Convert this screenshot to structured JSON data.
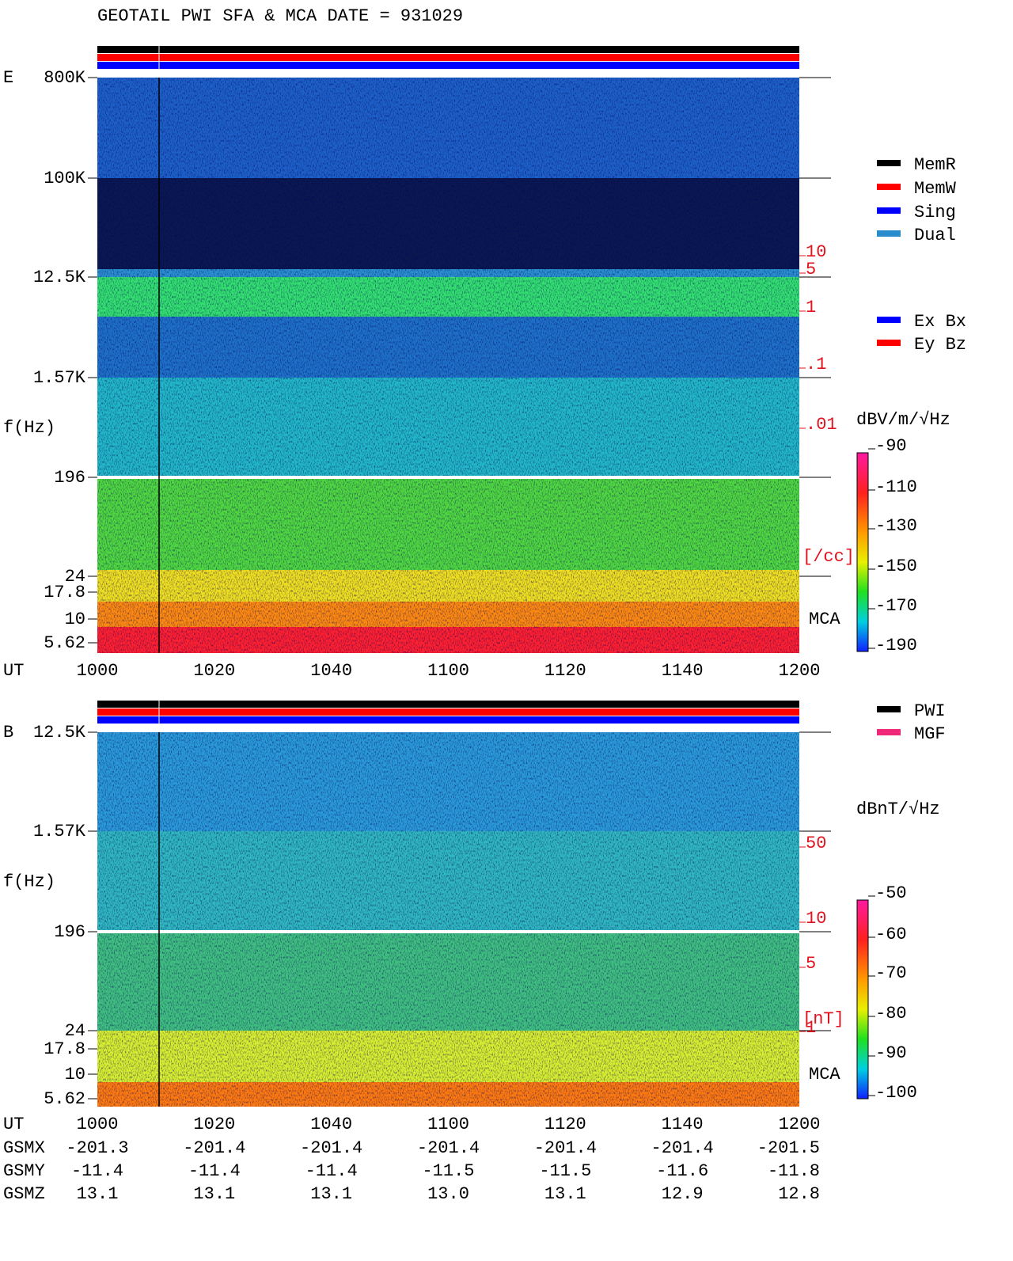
{
  "title": "GEOTAIL  PWI SFA & MCA   DATE = 931029",
  "panels": [
    {
      "name": "E",
      "y_label": "f(Hz)",
      "freq_ticks": [
        "800K",
        "100K",
        "12.5K",
        "1.57K",
        196,
        24,
        17.8,
        10,
        5.62
      ],
      "time_label": "UT",
      "time_ticks": [
        1000,
        1020,
        1040,
        1100,
        1120,
        1140,
        1200
      ],
      "legend": [
        "MemR",
        "MemW",
        "Sing",
        "Dual"
      ],
      "legend2": [
        "Ex Bx",
        "Ey Bz"
      ],
      "unit": "dBV/m/√Hz",
      "colorbar_ticks": [
        -90,
        -110,
        -130,
        -150,
        -170,
        -190
      ],
      "right_ticks": [
        10,
        5,
        1,
        ".1",
        ".01"
      ],
      "right_unit": "[/cc]",
      "mca_label": "MCA"
    },
    {
      "name": "B",
      "y_label": "f(Hz)",
      "freq_ticks": [
        "12.5K",
        "1.57K",
        196,
        24,
        17.8,
        10,
        5.62
      ],
      "time_label": "UT",
      "time_ticks": [
        1000,
        1020,
        1040,
        1100,
        1120,
        1140,
        1200
      ],
      "legend": [
        "PWI",
        "MGF"
      ],
      "unit": "dBnT/√Hz",
      "colorbar_ticks": [
        -50,
        -60,
        -70,
        -80,
        -90,
        -100
      ],
      "right_ticks": [
        50,
        10,
        5,
        1
      ],
      "right_unit": "[nT]",
      "mca_label": "MCA"
    }
  ],
  "orbit": [
    {
      "label": "GSMX",
      "values": [
        -201.3,
        -201.4,
        -201.4,
        -201.4,
        -201.4,
        -201.4,
        -201.5
      ]
    },
    {
      "label": "GSMY",
      "values": [
        -11.4,
        -11.4,
        -11.4,
        -11.5,
        -11.5,
        -11.6,
        -11.8
      ]
    },
    {
      "label": "GSMZ",
      "values": [
        13.1,
        13.1,
        13.1,
        "13.0",
        13.1,
        12.9,
        12.8
      ]
    }
  ]
}
